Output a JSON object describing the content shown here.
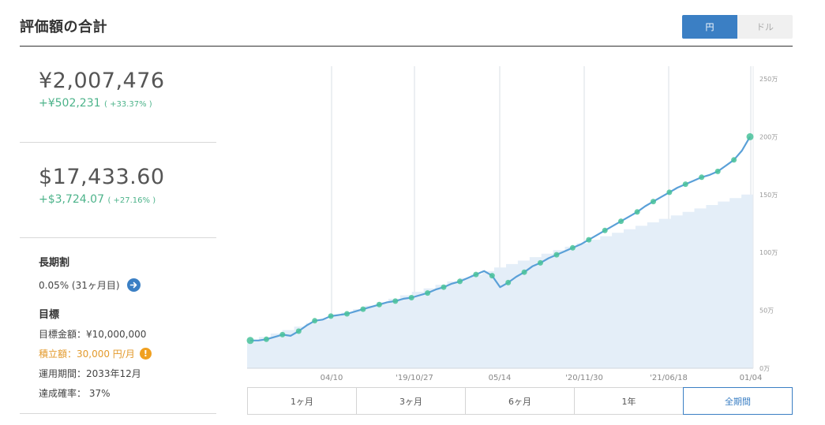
{
  "header": {
    "title": "評価額の合計"
  },
  "currency_toggle": {
    "yen_label": "円",
    "dollar_label": "ドル",
    "selected": "円"
  },
  "summary": {
    "yen_total": "¥2,007,476",
    "yen_gain": "+¥502,231",
    "yen_gain_pct": "( +33.37% )",
    "usd_total": "$17,433.60",
    "usd_gain": "+$3,724.07",
    "usd_gain_pct": "( +27.16% )"
  },
  "long_term_discount": {
    "label": "長期割",
    "value": "0.05% (31ヶ月目)"
  },
  "goal": {
    "heading": "目標",
    "amount": "目標金額：¥10,000,000",
    "monthly": "積立額：30,000 円/月",
    "period": "運用期間：2033年12月",
    "probability": "達成確率： 37%"
  },
  "period_tabs": {
    "items": [
      "1ヶ月",
      "3ヶ月",
      "6ヶ月",
      "1年",
      "全期間"
    ],
    "selected": "全期間"
  },
  "colors": {
    "accent": "#3b7fc4",
    "gain_green": "#4cb38a",
    "warning": "#f0a020",
    "line": "#5aa0d8",
    "area": "#e4eef8",
    "marker": "#49c29a"
  },
  "chart_data": {
    "type": "line",
    "y_unit": "万",
    "y_ticks": [
      "0万",
      "50万",
      "100万",
      "150万",
      "200万",
      "250万"
    ],
    "ylim": [
      0,
      250
    ],
    "x_tick_labels": [
      "04/10",
      "'19/10/27",
      "05/14",
      "'20/11/30",
      "'21/06/18",
      "01/04"
    ],
    "grid": "vertical",
    "series": [
      {
        "kind": "valuation",
        "values": [
          24,
          24,
          25,
          27,
          29,
          28,
          32,
          37,
          41,
          42,
          45,
          46,
          47,
          49,
          51,
          53,
          55,
          57,
          58,
          60,
          61,
          63,
          65,
          68,
          70,
          73,
          75,
          78,
          81,
          84,
          80,
          70,
          74,
          79,
          83,
          88,
          91,
          95,
          98,
          101,
          104,
          107,
          111,
          115,
          119,
          123,
          127,
          131,
          135,
          140,
          144,
          148,
          152,
          156,
          159,
          162,
          165,
          167,
          170,
          175,
          180,
          188,
          200
        ]
      },
      {
        "kind": "contributions",
        "values": [
          24,
          27,
          30,
          33,
          36,
          39,
          42,
          45,
          48,
          51,
          54,
          57,
          60,
          63,
          66,
          69,
          72,
          75,
          78,
          81,
          84,
          87,
          90,
          93,
          96,
          99,
          102,
          105,
          108,
          111,
          114,
          117,
          120,
          123,
          126,
          129,
          132,
          135,
          138,
          141,
          144,
          147,
          150
        ]
      }
    ]
  }
}
